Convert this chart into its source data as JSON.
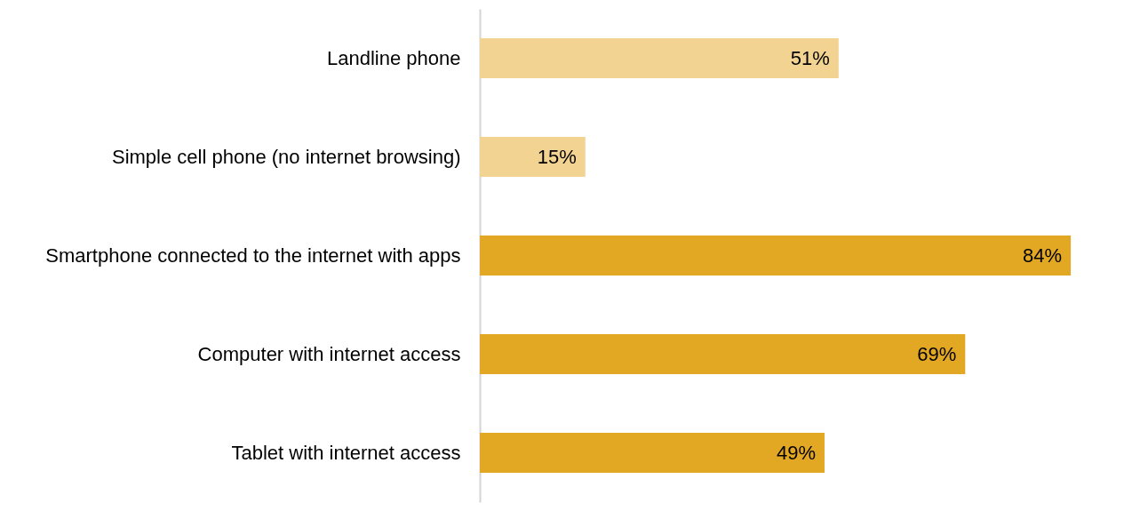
{
  "chart_data": {
    "type": "bar",
    "orientation": "horizontal",
    "categories": [
      "Landline phone",
      "Simple cell phone (no internet browsing)",
      "Smartphone connected to the internet with apps",
      "Computer with internet access",
      "Tablet with internet access"
    ],
    "values": [
      51,
      15,
      84,
      69,
      49
    ],
    "colors": [
      "#f2d391",
      "#f2d391",
      "#e3a823",
      "#e3a823",
      "#e3a823"
    ],
    "value_labels": [
      "51%",
      "15%",
      "84%",
      "69%",
      "49%"
    ]
  }
}
